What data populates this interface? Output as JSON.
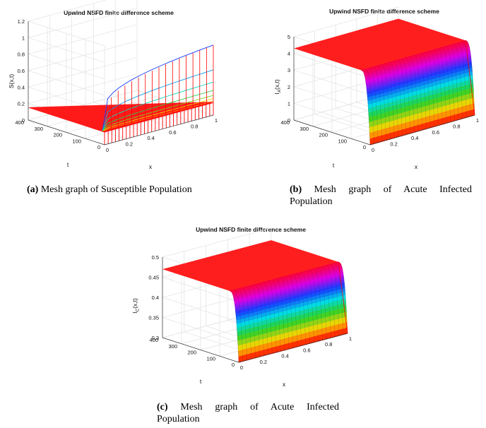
{
  "chart_data": [
    {
      "type": "surface",
      "title": "Upwind NSFD finite difference scheme",
      "xlabel": "x",
      "ylabel": "t",
      "zlabel": "S(x,t)",
      "x_ticks": [
        "0",
        "0.2",
        "0.4",
        "0.6",
        "0.8",
        "1"
      ],
      "t_ticks": [
        "0",
        "100",
        "200",
        "300",
        "400"
      ],
      "z_ticks": [
        "0",
        "0.2",
        "0.4",
        "0.6",
        "0.8",
        "1",
        "1.2"
      ],
      "xlim": [
        0,
        1
      ],
      "tlim": [
        0,
        400
      ],
      "zlim": [
        0,
        1.2
      ],
      "plateau_value": 0.15,
      "boundary_profile_x1": [
        0.85,
        0.55,
        0.4,
        0.3,
        0.24,
        0.2,
        0.17,
        0.15
      ],
      "caption_tag": "(a)",
      "caption": "Mesh graph of Susceptible Population"
    },
    {
      "type": "surface",
      "title": "Upwind NSFD finite difference scheme",
      "xlabel": "x",
      "ylabel": "t",
      "zlabel_main": "I",
      "zlabel_sub": "A",
      "zlabel_tail": "(x,t)",
      "x_ticks": [
        "0",
        "0.2",
        "0.4",
        "0.6",
        "0.8",
        "1"
      ],
      "t_ticks": [
        "0",
        "100",
        "200",
        "300",
        "400"
      ],
      "z_ticks": [
        "0",
        "1",
        "2",
        "3",
        "4",
        "5"
      ],
      "xlim": [
        0,
        1
      ],
      "tlim": [
        0,
        400
      ],
      "zlim": [
        0,
        5
      ],
      "plateau_value": 4.3,
      "initial_value": 0.0,
      "caption_tag": "(b)",
      "caption_line1": "Mesh graph of Acute Infected",
      "caption_line2": "Population"
    },
    {
      "type": "surface",
      "title": "Upwind NSFD finite difference scheme",
      "xlabel": "x",
      "ylabel": "t",
      "zlabel_main": "I",
      "zlabel_sub": "C",
      "zlabel_tail": "(x,t)",
      "x_ticks": [
        "0",
        "0.2",
        "0.4",
        "0.6",
        "0.8",
        "1"
      ],
      "t_ticks": [
        "0",
        "100",
        "200",
        "300",
        "400"
      ],
      "z_ticks": [
        "0.3",
        "0.35",
        "0.4",
        "0.45",
        "0.5"
      ],
      "xlim": [
        0,
        1
      ],
      "tlim": [
        0,
        400
      ],
      "zlim": [
        0.3,
        0.5
      ],
      "plateau_value": 0.47,
      "initial_value": 0.3,
      "caption_tag": "(c)",
      "caption_line1": "Mesh graph of Acute Infected",
      "caption_line2": "Population"
    }
  ]
}
